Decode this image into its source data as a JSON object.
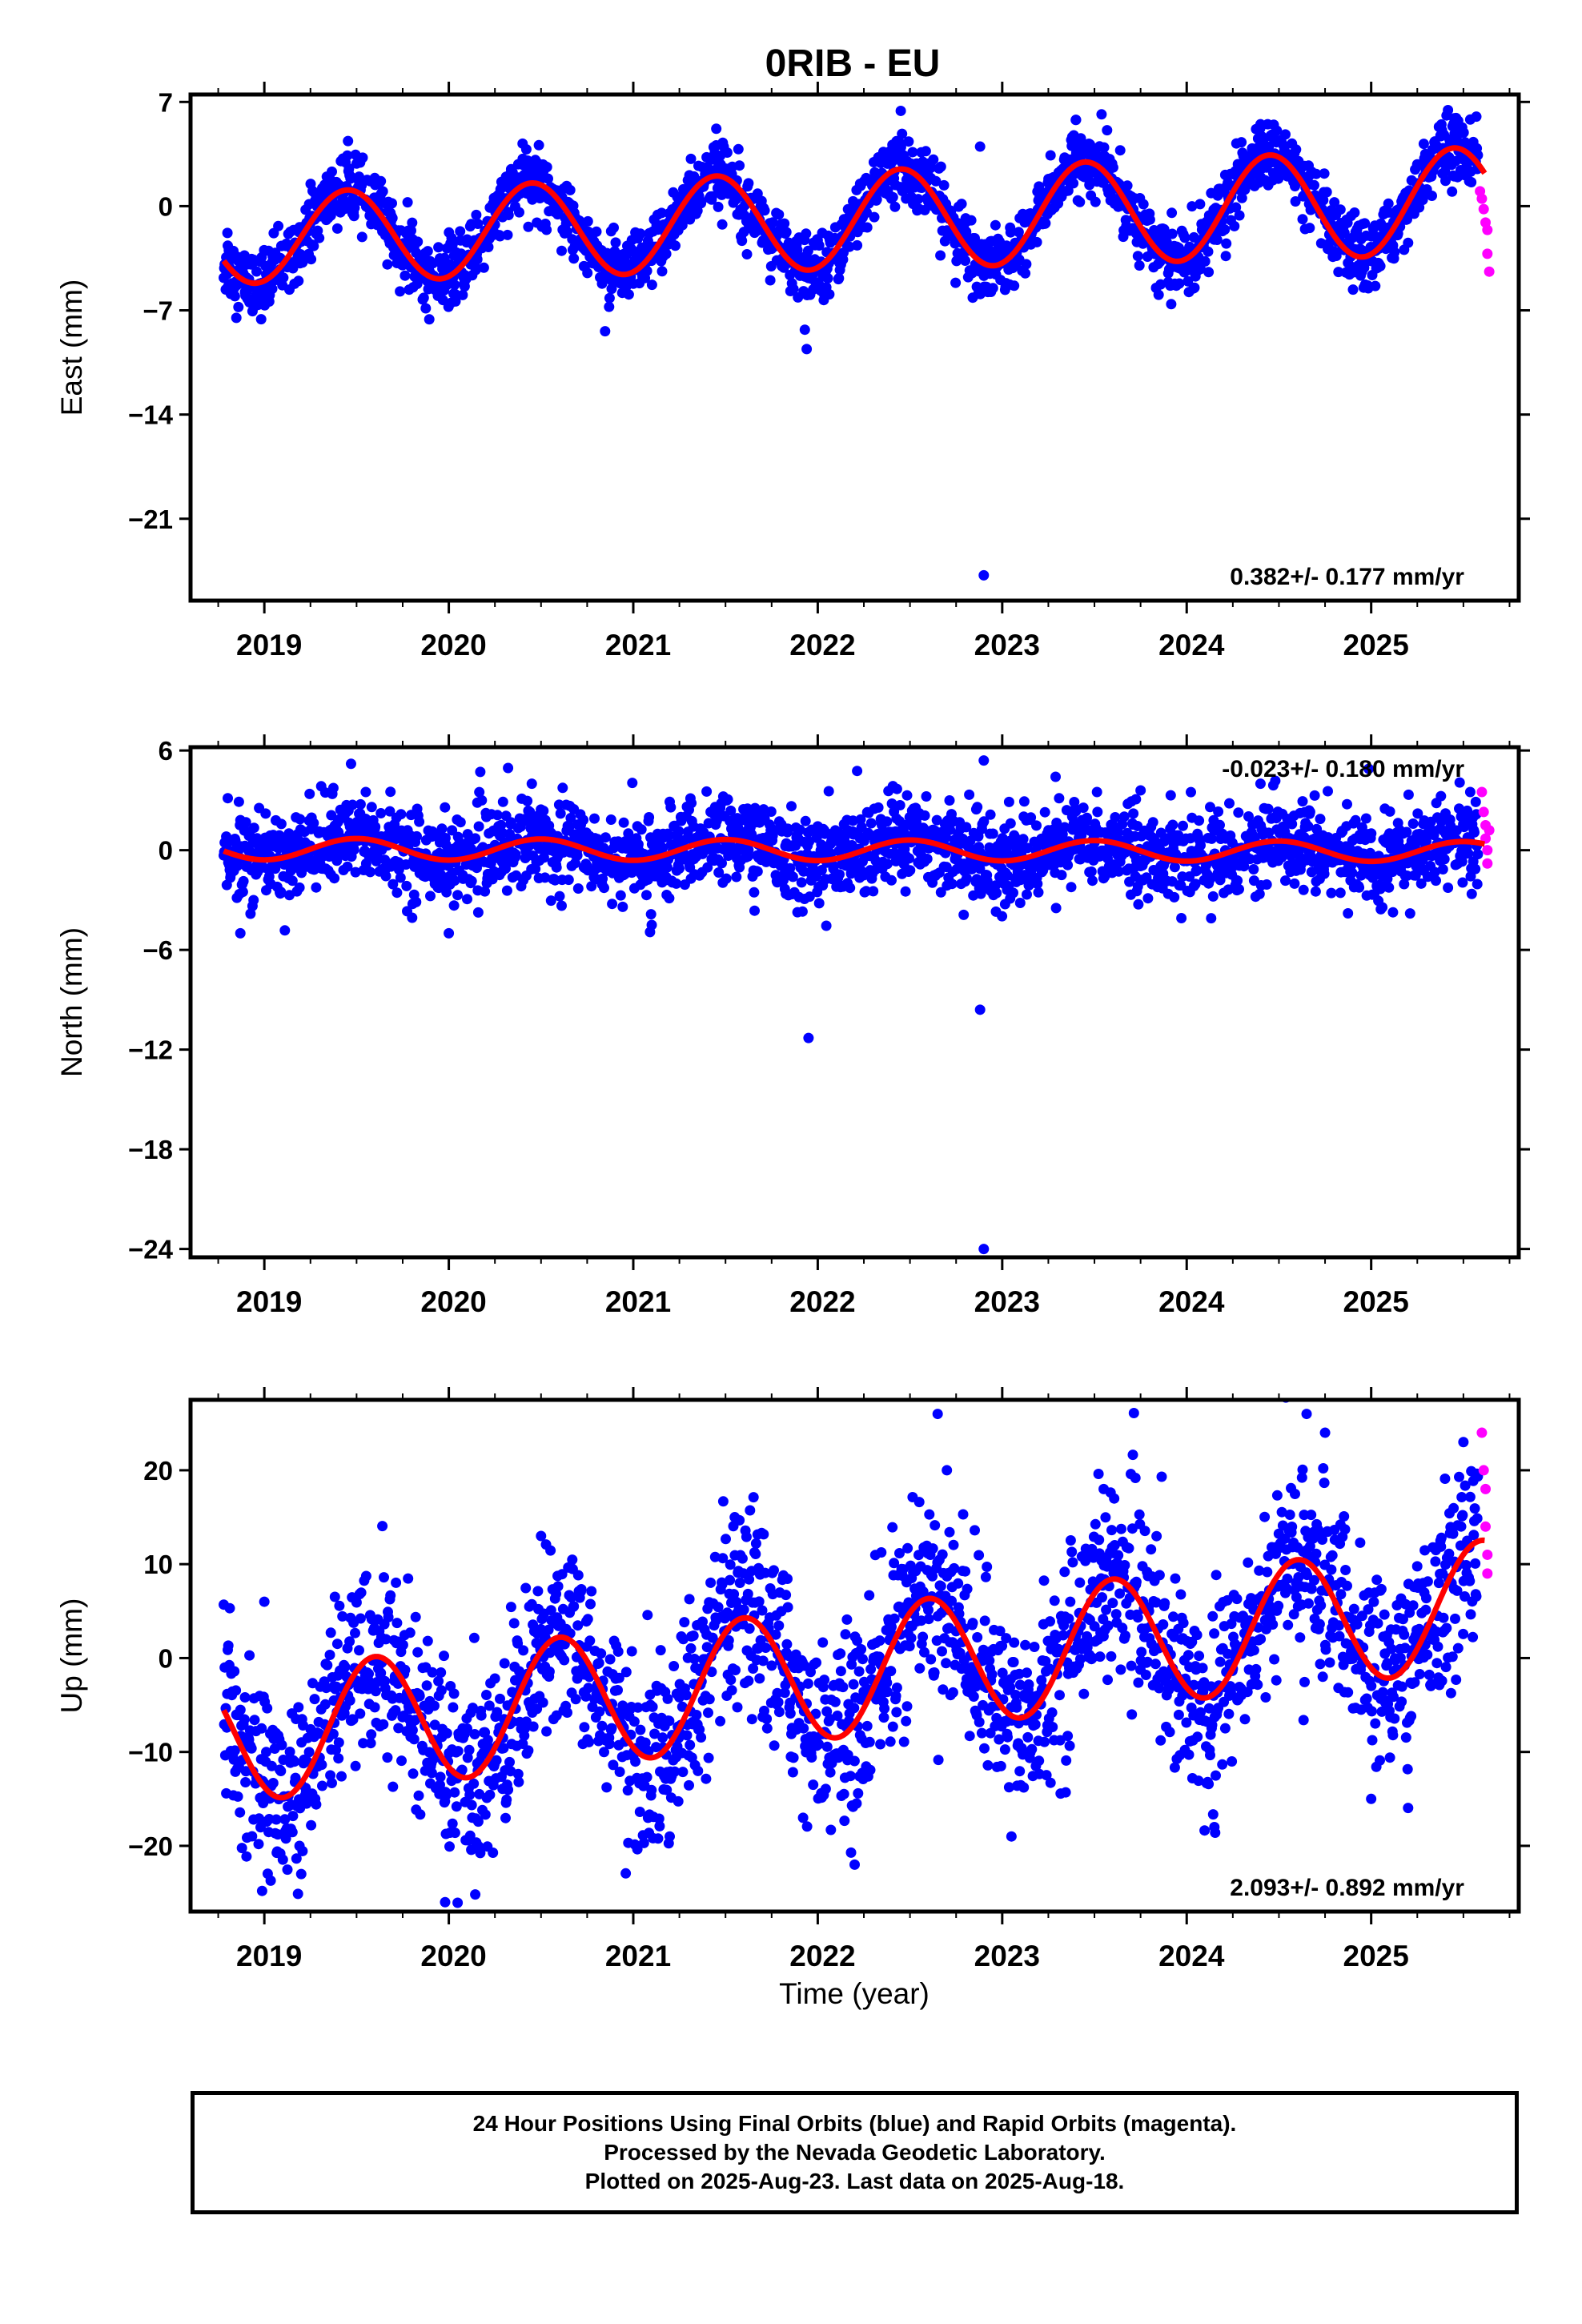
{
  "title": "0RIB - EU",
  "xlabel": "Time (year)",
  "footer": {
    "line1": "24 Hour Positions Using Final Orbits (blue) and Rapid Orbits (magenta).",
    "line2": "Processed by the Nevada Geodetic Laboratory.",
    "line3": "Plotted on 2025-Aug-23. Last data on 2025-Aug-18."
  },
  "colors": {
    "final": "#0000ff",
    "rapid": "#ff00ff",
    "model": "#ff0000",
    "axis": "#000000"
  },
  "chart_data": [
    {
      "type": "scatter",
      "ylabel": "East (mm)",
      "xlim": [
        2018.6,
        2025.8
      ],
      "ylim": [
        -26.5,
        7.5
      ],
      "yticks": [
        7,
        0,
        -7,
        -14,
        -21
      ],
      "xticks": [
        2019,
        2020,
        2021,
        2022,
        2023,
        2024,
        2025
      ],
      "rate_label": "0.382+/- 0.177 mm/yr",
      "rate_position": "bottom-right",
      "model": {
        "name": "fit",
        "offset": -1.0,
        "rate": 0.382,
        "t0": 2022.0,
        "amplitude_start": 3.0,
        "amplitude_end": 3.6,
        "phase_peak": 0.45
      },
      "final_samples": [
        [
          2018.8,
          -1.8
        ],
        [
          2019.0,
          -6.2
        ],
        [
          2019.45,
          3.4
        ],
        [
          2019.9,
          -5.5
        ],
        [
          2020.4,
          4.2
        ],
        [
          2020.9,
          -4.6
        ],
        [
          2021.45,
          5.2
        ],
        [
          2021.93,
          -8.3
        ],
        [
          2021.94,
          -9.6
        ],
        [
          2022.45,
          6.4
        ],
        [
          2022.88,
          4.0
        ],
        [
          2022.9,
          -24.8
        ],
        [
          2023.4,
          5.8
        ],
        [
          2023.9,
          -5.1
        ],
        [
          2024.4,
          5.5
        ],
        [
          2024.95,
          -4.4
        ],
        [
          2025.45,
          5.9
        ]
      ],
      "rapid_points": [
        [
          2025.59,
          1.0
        ],
        [
          2025.6,
          0.5
        ],
        [
          2025.61,
          -0.2
        ],
        [
          2025.62,
          -1.1
        ],
        [
          2025.63,
          -1.6
        ],
        [
          2025.63,
          -3.2
        ],
        [
          2025.64,
          -4.4
        ]
      ]
    },
    {
      "type": "scatter",
      "ylabel": "North (mm)",
      "xlim": [
        2018.6,
        2025.8
      ],
      "ylim": [
        -24.5,
        6.2
      ],
      "yticks": [
        6,
        0,
        -6,
        -12,
        -18,
        -24
      ],
      "xticks": [
        2019,
        2020,
        2021,
        2022,
        2023,
        2024,
        2025
      ],
      "rate_label": "-0.023+/- 0.180 mm/yr",
      "rate_position": "top-right",
      "model": {
        "name": "fit",
        "offset": 0.0,
        "rate": -0.023,
        "t0": 2022.0,
        "amplitude_start": 0.65,
        "amplitude_end": 0.6,
        "phase_peak": 0.5
      },
      "final_samples": [
        [
          2018.87,
          -5.0
        ],
        [
          2019.47,
          5.2
        ],
        [
          2019.55,
          3.5
        ],
        [
          2020.45,
          4.0
        ],
        [
          2020.0,
          -5.0
        ],
        [
          2021.1,
          -4.5
        ],
        [
          2021.95,
          -11.3
        ],
        [
          2022.88,
          -9.6
        ],
        [
          2022.9,
          5.4
        ],
        [
          2022.9,
          -24.0
        ],
        [
          2023.75,
          3.6
        ],
        [
          2024.4,
          4.0
        ]
      ],
      "rapid_points": [
        [
          2025.6,
          3.5
        ],
        [
          2025.61,
          2.3
        ],
        [
          2025.62,
          1.5
        ],
        [
          2025.62,
          0.7
        ],
        [
          2025.63,
          0.0
        ],
        [
          2025.63,
          -0.8
        ],
        [
          2025.64,
          1.2
        ]
      ]
    },
    {
      "type": "scatter",
      "ylabel": "Up (mm)",
      "xlim": [
        2018.6,
        2025.8
      ],
      "ylim": [
        -27.0,
        27.5
      ],
      "yticks": [
        20,
        10,
        0,
        -10,
        -20
      ],
      "xticks": [
        2019,
        2020,
        2021,
        2022,
        2023,
        2024,
        2025
      ],
      "rate_label": "2.093+/- 0.892 mm/yr",
      "rate_position": "bottom-right",
      "model": {
        "name": "fit",
        "offset": -1.8,
        "rate": 2.093,
        "t0": 2022.0,
        "amplitude_start": 7.0,
        "amplitude_end": 6.8,
        "phase_peak": 0.6
      },
      "final_samples": [
        [
          2019.0,
          6.0
        ],
        [
          2019.2,
          -23.0
        ],
        [
          2019.98,
          -26.0
        ],
        [
          2020.5,
          13.0
        ],
        [
          2021.55,
          15.0
        ],
        [
          2022.2,
          -22.0
        ],
        [
          2022.65,
          26.0
        ],
        [
          2022.7,
          20.0
        ],
        [
          2023.05,
          -19.0
        ],
        [
          2023.55,
          18.0
        ],
        [
          2024.15,
          -18.0
        ],
        [
          2024.65,
          26.0
        ],
        [
          2024.75,
          24.0
        ],
        [
          2025.0,
          -15.0
        ],
        [
          2025.5,
          23.0
        ]
      ],
      "rapid_points": [
        [
          2025.6,
          24.0
        ],
        [
          2025.61,
          20.0
        ],
        [
          2025.62,
          18.0
        ],
        [
          2025.62,
          14.0
        ],
        [
          2025.63,
          11.0
        ],
        [
          2025.63,
          9.0
        ]
      ]
    }
  ]
}
